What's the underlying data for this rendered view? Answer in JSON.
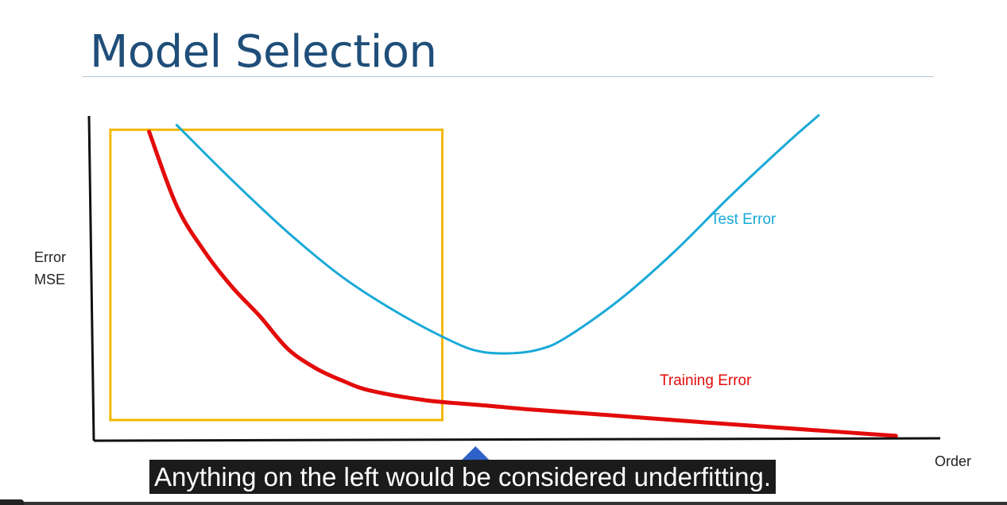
{
  "slide": {
    "title": "Model Selection"
  },
  "chart_data": {
    "type": "line",
    "title": "",
    "ylabel_lines": [
      "Error",
      "MSE"
    ],
    "xlabel": "Order",
    "grid": false,
    "axis_ticks": "none",
    "series": [
      {
        "name": "Training Error",
        "color": "#e30b0b",
        "points": [
          [
            1.0,
            0.95
          ],
          [
            1.5,
            0.72
          ],
          [
            2.0,
            0.58
          ],
          [
            2.5,
            0.47
          ],
          [
            3.0,
            0.38
          ],
          [
            3.5,
            0.28
          ],
          [
            4.0,
            0.22
          ],
          [
            4.5,
            0.18
          ],
          [
            5.0,
            0.15
          ],
          [
            6.0,
            0.12
          ],
          [
            7.0,
            0.105
          ],
          [
            8.0,
            0.09
          ],
          [
            9.0,
            0.078
          ],
          [
            10.0,
            0.065
          ],
          [
            11.0,
            0.052
          ],
          [
            12.0,
            0.04
          ],
          [
            13.0,
            0.028
          ],
          [
            14.0,
            0.016
          ],
          [
            14.5,
            0.01
          ]
        ]
      },
      {
        "name": "Test Error",
        "color": "#19a9d8",
        "points": [
          [
            1.5,
            0.97
          ],
          [
            2.5,
            0.8
          ],
          [
            3.5,
            0.64
          ],
          [
            4.5,
            0.5
          ],
          [
            5.5,
            0.39
          ],
          [
            6.5,
            0.3
          ],
          [
            7.0,
            0.27
          ],
          [
            7.5,
            0.265
          ],
          [
            8.0,
            0.275
          ],
          [
            8.5,
            0.31
          ],
          [
            9.5,
            0.43
          ],
          [
            10.5,
            0.58
          ],
          [
            11.5,
            0.75
          ],
          [
            12.5,
            0.91
          ],
          [
            13.1,
            1.0
          ]
        ]
      }
    ],
    "x_range": [
      0,
      15.3
    ],
    "y_range": [
      0,
      1.05
    ],
    "highlight_region": {
      "x_range": [
        0.3,
        6.3
      ],
      "y_range": [
        0.0,
        1.0
      ],
      "color": "#f2b800"
    },
    "marker_at_x": 6.9
  },
  "caption": {
    "text": "Anything on the left would be considered underfitting."
  },
  "player": {
    "progress_fraction": 0
  }
}
